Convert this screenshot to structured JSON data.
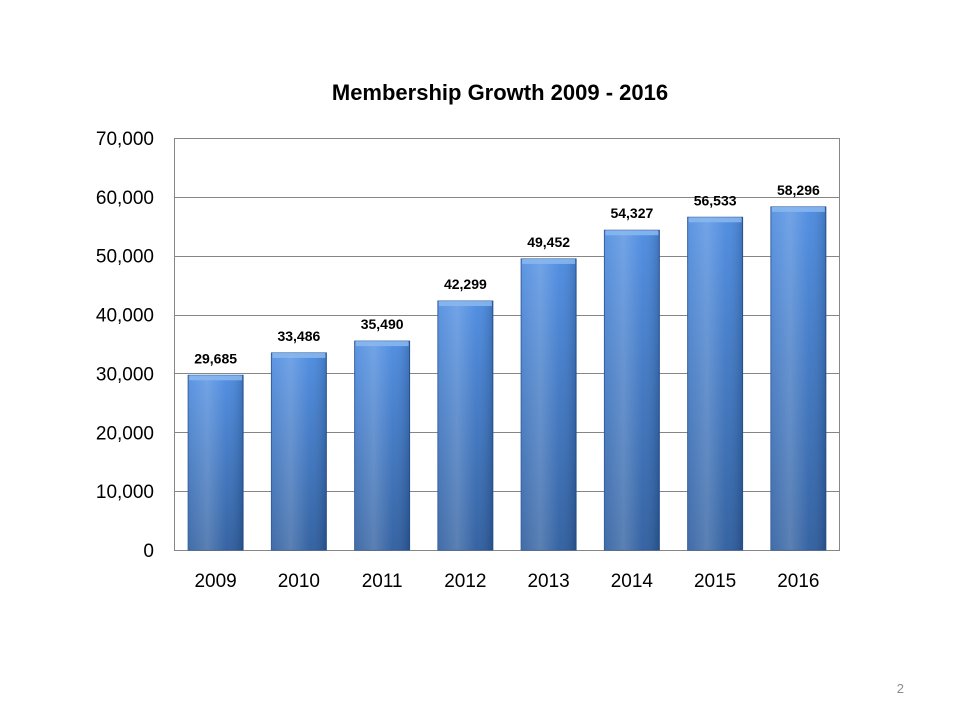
{
  "slide": {
    "page_number": "2"
  },
  "chart_data": {
    "type": "bar",
    "title": "Membership Growth 2009 - 2016",
    "xlabel": "",
    "ylabel": "",
    "categories": [
      "2009",
      "2010",
      "2011",
      "2012",
      "2013",
      "2014",
      "2015",
      "2016"
    ],
    "values": [
      29685,
      33486,
      35490,
      42299,
      49452,
      54327,
      56533,
      58296
    ],
    "data_labels": [
      "29,685",
      "33,486",
      "35,490",
      "42,299",
      "49,452",
      "54,327",
      "56,533",
      "58,296"
    ],
    "ylim": [
      0,
      70000
    ],
    "y_ticks": [
      0,
      10000,
      20000,
      30000,
      40000,
      50000,
      60000,
      70000
    ],
    "y_tick_labels": [
      "0",
      "10,000",
      "20,000",
      "30,000",
      "40,000",
      "50,000",
      "60,000",
      "70,000"
    ],
    "grid": true,
    "legend": "none",
    "bar_color": "#3f7fd0",
    "bar_color_dark": "#2a5aa0",
    "grid_color": "#868686"
  }
}
